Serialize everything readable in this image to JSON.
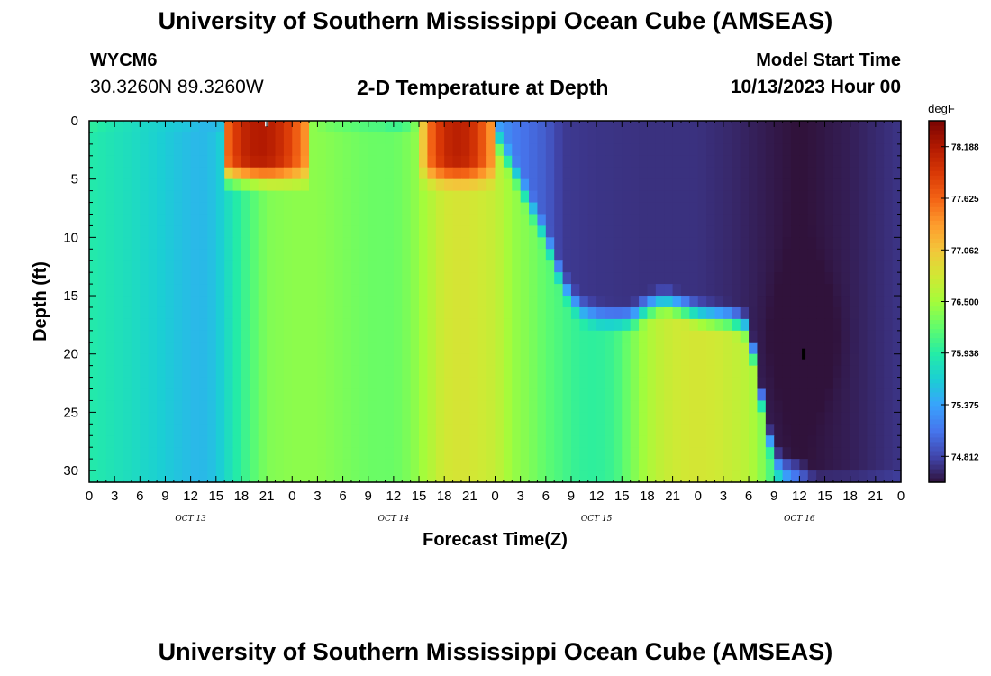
{
  "header": {
    "title": "University of Southern Mississippi Ocean Cube (AMSEAS)",
    "footer_title": "University of Southern Mississippi Ocean Cube (AMSEAS)",
    "station_id": "WYCM6",
    "station_coords": "30.3260N  89.3260W",
    "product": "2-D Temperature at Depth",
    "model_start_label": "Model Start Time",
    "model_start_value": "10/13/2023 Hour 00"
  },
  "chart_data": {
    "type": "heatmap",
    "title": "2-D Temperature at Depth",
    "xlabel": "Forecast Time(Z)",
    "ylabel": "Depth (ft)",
    "x_range_hours": [
      0,
      96
    ],
    "y_range_ft": [
      0,
      31
    ],
    "y_ticks": [
      0,
      5,
      10,
      15,
      20,
      25,
      30
    ],
    "x_tick_hours": [
      0,
      3,
      6,
      9,
      12,
      15,
      18,
      21,
      24,
      27,
      30,
      33,
      36,
      39,
      42,
      45,
      48,
      51,
      54,
      57,
      60,
      63,
      66,
      69,
      72,
      75,
      78,
      81,
      84,
      87,
      90,
      93,
      96
    ],
    "x_tick_labels": [
      "0",
      "3",
      "6",
      "9",
      "12",
      "15",
      "18",
      "21",
      "0",
      "3",
      "6",
      "9",
      "12",
      "15",
      "18",
      "21",
      "0",
      "3",
      "6",
      "9",
      "12",
      "15",
      "18",
      "21",
      "0",
      "3",
      "6",
      "9",
      "12",
      "15",
      "18",
      "21",
      "0"
    ],
    "day_labels": [
      {
        "label": "OCT 13",
        "hour": 12
      },
      {
        "label": "OCT 14",
        "hour": 36
      },
      {
        "label": "OCT 15",
        "hour": 60
      },
      {
        "label": "OCT 16",
        "hour": 84
      }
    ],
    "colorbar": {
      "unit": "degF",
      "min": 74.53,
      "max": 78.47,
      "tick_values": [
        74.812,
        75.375,
        75.938,
        76.5,
        77.062,
        77.625,
        78.188
      ],
      "tick_labels": [
        "74.812",
        "75.375",
        "75.938",
        "76.500",
        "77.062",
        "77.625",
        "78.188"
      ]
    },
    "colormap": [
      "#30123b",
      "#4145ab",
      "#4675ed",
      "#39a2fc",
      "#1bcfd4",
      "#24eca6",
      "#61fc6c",
      "#a4fc3b",
      "#d1e834",
      "#f3c63a",
      "#fe9b2d",
      "#f36315",
      "#d93806",
      "#b11901",
      "#7a0402"
    ],
    "surface_temp_degF": [
      [
        0,
        76.2
      ],
      [
        3,
        75.92
      ],
      [
        6,
        75.76
      ],
      [
        9,
        75.72
      ],
      [
        12,
        75.68
      ],
      [
        14,
        75.42
      ],
      [
        15.5,
        75.35
      ],
      [
        16,
        77.5
      ],
      [
        18,
        78.05
      ],
      [
        20,
        78.2
      ],
      [
        22,
        78.1
      ],
      [
        24,
        77.8
      ],
      [
        25.5,
        77.4
      ],
      [
        26,
        76.5
      ],
      [
        28,
        76.1
      ],
      [
        30,
        75.95
      ],
      [
        32,
        75.85
      ],
      [
        35,
        75.75
      ],
      [
        36,
        75.42
      ],
      [
        38,
        75.7
      ],
      [
        39,
        76.6
      ],
      [
        40,
        77.5
      ],
      [
        42,
        78.05
      ],
      [
        44,
        78.15
      ],
      [
        46,
        77.9
      ],
      [
        47.5,
        77.4
      ],
      [
        48,
        75.4
      ],
      [
        50,
        75.15
      ],
      [
        54,
        74.95
      ],
      [
        56,
        74.75
      ],
      [
        60,
        74.72
      ],
      [
        66,
        74.7
      ],
      [
        72,
        74.7
      ],
      [
        76,
        74.65
      ],
      [
        79,
        74.6
      ],
      [
        84,
        74.52
      ],
      [
        90,
        74.6
      ],
      [
        96,
        74.72
      ]
    ],
    "mixed_layer_depth_ft": [
      [
        0,
        0
      ],
      [
        15.5,
        0
      ],
      [
        16,
        4.8
      ],
      [
        25.5,
        4.8
      ],
      [
        26,
        0
      ],
      [
        38.5,
        0
      ],
      [
        39,
        4.8
      ],
      [
        48,
        4.8
      ],
      [
        48.5,
        2
      ],
      [
        50,
        4
      ],
      [
        52,
        7
      ],
      [
        54,
        10
      ],
      [
        56,
        14
      ],
      [
        58,
        16.2
      ],
      [
        60,
        16.8
      ],
      [
        62,
        17
      ],
      [
        64,
        17
      ],
      [
        66,
        16
      ],
      [
        68,
        15.5
      ],
      [
        70,
        16
      ],
      [
        72,
        16.6
      ],
      [
        74,
        16.8
      ],
      [
        76,
        17
      ],
      [
        78,
        17.8
      ],
      [
        79,
        22
      ],
      [
        80,
        26
      ],
      [
        81,
        29
      ],
      [
        82,
        29.7
      ],
      [
        84,
        30
      ],
      [
        86,
        31.2
      ],
      [
        96,
        31.2
      ]
    ],
    "bottom_temp_degF": [
      [
        0,
        75.92
      ],
      [
        5,
        75.78
      ],
      [
        10,
        75.6
      ],
      [
        13,
        75.5
      ],
      [
        15,
        75.58
      ],
      [
        18,
        76.0
      ],
      [
        21,
        76.35
      ],
      [
        24,
        76.4
      ],
      [
        27,
        76.4
      ],
      [
        30,
        76.33
      ],
      [
        33,
        76.26
      ],
      [
        36,
        76.25
      ],
      [
        38,
        76.35
      ],
      [
        40,
        76.55
      ],
      [
        42,
        76.78
      ],
      [
        44,
        76.83
      ],
      [
        46,
        76.78
      ],
      [
        48,
        76.7
      ],
      [
        50,
        76.45
      ],
      [
        52,
        76.35
      ],
      [
        54,
        76.2
      ],
      [
        56,
        76.1
      ],
      [
        58,
        76.0
      ],
      [
        60,
        75.98
      ],
      [
        62,
        76.05
      ],
      [
        64,
        76.3
      ],
      [
        66,
        76.55
      ],
      [
        68,
        76.7
      ],
      [
        70,
        76.78
      ],
      [
        72,
        76.8
      ],
      [
        74,
        76.78
      ],
      [
        76,
        76.7
      ],
      [
        78,
        76.62
      ],
      [
        80,
        76.3
      ],
      [
        82,
        75.6
      ],
      [
        84,
        75.2
      ],
      [
        86,
        75.1
      ],
      [
        90,
        75.0
      ],
      [
        96,
        75.0
      ]
    ],
    "cold_core": {
      "hour": 84.5,
      "depth_ft": 18.5,
      "temp_degF": 74.53
    },
    "markers": [
      {
        "name": "surface-marker",
        "hour": 21,
        "depth_ft": 0.1,
        "color": "#ffffff"
      },
      {
        "name": "depth-marker",
        "hour": 84.5,
        "depth_ft": 20,
        "color": "#000000"
      }
    ]
  }
}
